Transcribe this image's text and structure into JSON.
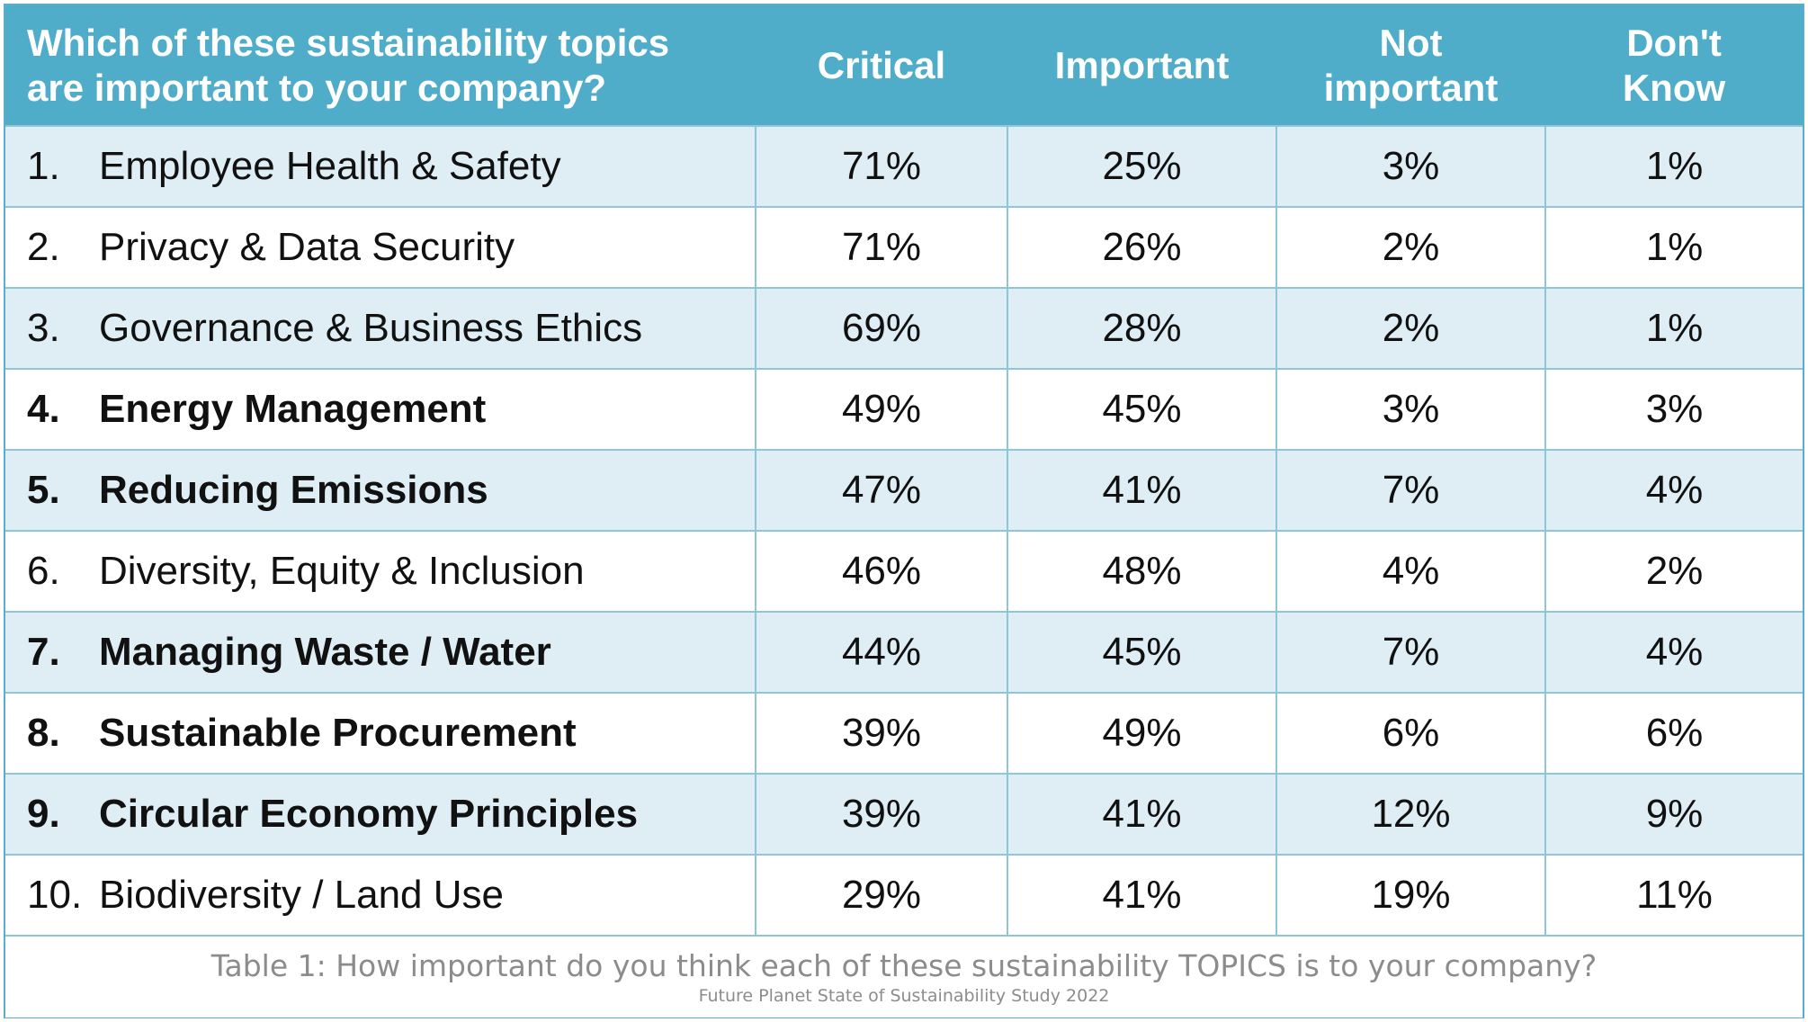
{
  "header": {
    "question_line1": "Which of these sustainability topics",
    "question_line2": "are important to your company?",
    "critical": "Critical",
    "important": "Important",
    "not_important_line1": "Not",
    "not_important_line2": "important",
    "dont_know_line1": "Don't",
    "dont_know_line2": "Know"
  },
  "rows": [
    {
      "num": "1.",
      "topic": "Employee Health & Safety",
      "critical": "71%",
      "important": "25%",
      "not_important": "3%",
      "dont_know": "1%",
      "bold": false
    },
    {
      "num": "2.",
      "topic": "Privacy & Data Security",
      "critical": "71%",
      "important": "26%",
      "not_important": "2%",
      "dont_know": "1%",
      "bold": false
    },
    {
      "num": "3.",
      "topic": "Governance & Business Ethics",
      "critical": "69%",
      "important": "28%",
      "not_important": "2%",
      "dont_know": "1%",
      "bold": false
    },
    {
      "num": "4.",
      "topic": "Energy Management",
      "critical": "49%",
      "important": "45%",
      "not_important": "3%",
      "dont_know": "3%",
      "bold": true
    },
    {
      "num": "5.",
      "topic": "Reducing Emissions",
      "critical": "47%",
      "important": "41%",
      "not_important": "7%",
      "dont_know": "4%",
      "bold": true
    },
    {
      "num": "6.",
      "topic": "Diversity, Equity & Inclusion",
      "critical": "46%",
      "important": "48%",
      "not_important": "4%",
      "dont_know": "2%",
      "bold": false
    },
    {
      "num": "7.",
      "topic": "Managing Waste / Water",
      "critical": "44%",
      "important": "45%",
      "not_important": "7%",
      "dont_know": "4%",
      "bold": true
    },
    {
      "num": "8.",
      "topic": "Sustainable Procurement",
      "critical": "39%",
      "important": "49%",
      "not_important": "6%",
      "dont_know": "6%",
      "bold": true
    },
    {
      "num": "9.",
      "topic": "Circular Economy Principles",
      "critical": "39%",
      "important": "41%",
      "not_important": "12%",
      "dont_know": "9%",
      "bold": true
    },
    {
      "num": "10.",
      "topic": "Biodiversity / Land Use",
      "critical": "29%",
      "important": "41%",
      "not_important": "19%",
      "dont_know": "11%",
      "bold": false
    }
  ],
  "footer": {
    "caption": "Table 1: How important do you think each of these sustainability TOPICS is to your company?",
    "source": "Future Planet State of Sustainability Study 2022"
  },
  "colors": {
    "header_bg": "#4fadc9",
    "row_shade": "#deeef4",
    "grid_line": "#8ec6d8",
    "caption_text": "#8c8c8c"
  }
}
